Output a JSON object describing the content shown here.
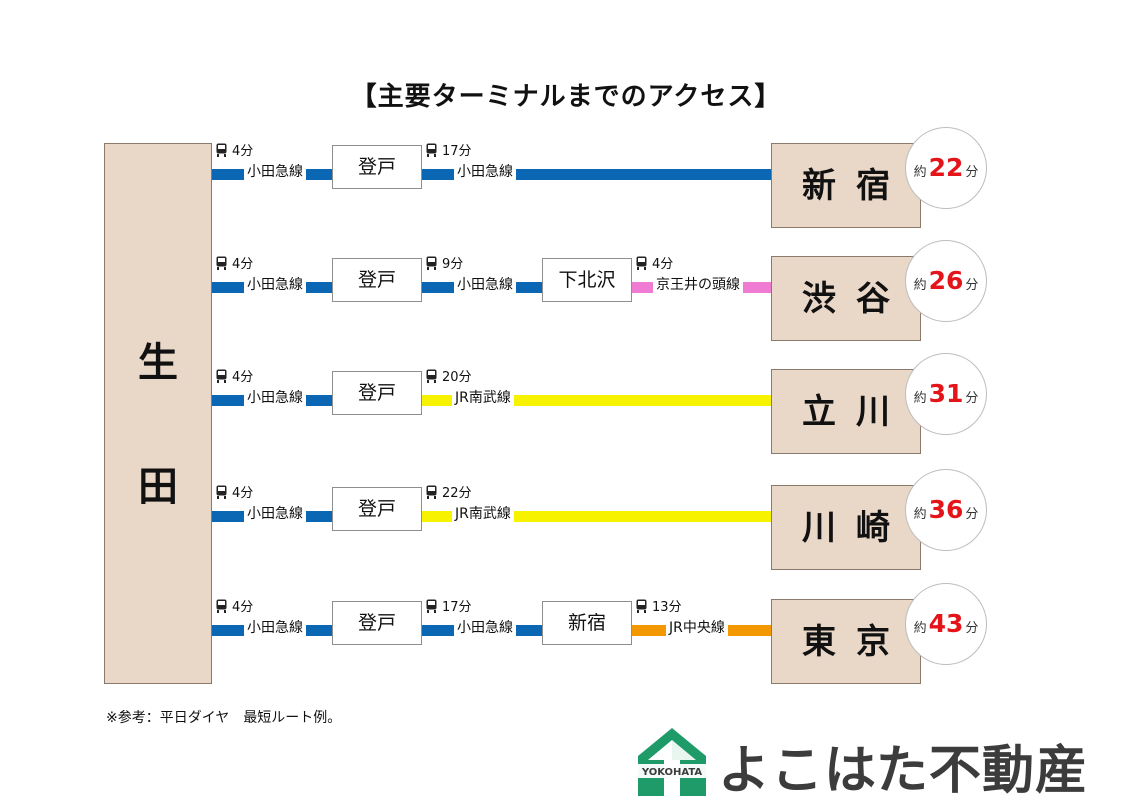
{
  "title": "【主要ターミナルまでのアクセス】",
  "origin": {
    "char1": "生",
    "char2": "田"
  },
  "colors": {
    "odakyu": "#0b67b3",
    "jr_nambu": "#f6f200",
    "keio_inokashira": "#f07bd3",
    "jr_chuo": "#f39800",
    "origin_fill": "#e9d7c8",
    "minutes_red": "#e3151a"
  },
  "routes": [
    {
      "seg1": {
        "time": "4分",
        "line": "小田急線"
      },
      "transfer1": "登戸",
      "seg2": {
        "time": "17分",
        "line": "小田急線"
      },
      "destination": "新宿",
      "badge": {
        "prefix": "約",
        "minutes": "22",
        "suffix": "分"
      }
    },
    {
      "seg1": {
        "time": "4分",
        "line": "小田急線"
      },
      "transfer1": "登戸",
      "seg2": {
        "time": "9分",
        "line": "小田急線"
      },
      "transfer2": "下北沢",
      "seg3": {
        "time": "4分",
        "line": "京王井の頭線"
      },
      "destination": "渋谷",
      "badge": {
        "prefix": "約",
        "minutes": "26",
        "suffix": "分"
      }
    },
    {
      "seg1": {
        "time": "4分",
        "line": "小田急線"
      },
      "transfer1": "登戸",
      "seg2": {
        "time": "20分",
        "line": "JR南武線"
      },
      "destination": "立川",
      "badge": {
        "prefix": "約",
        "minutes": "31",
        "suffix": "分"
      }
    },
    {
      "seg1": {
        "time": "4分",
        "line": "小田急線"
      },
      "transfer1": "登戸",
      "seg2": {
        "time": "22分",
        "line": "JR南武線"
      },
      "destination": "川崎",
      "badge": {
        "prefix": "約",
        "minutes": "36",
        "suffix": "分"
      }
    },
    {
      "seg1": {
        "time": "4分",
        "line": "小田急線"
      },
      "transfer1": "登戸",
      "seg2": {
        "time": "17分",
        "line": "小田急線"
      },
      "transfer2": "新宿",
      "seg3": {
        "time": "13分",
        "line": "JR中央線"
      },
      "destination": "東京",
      "badge": {
        "prefix": "約",
        "minutes": "43",
        "suffix": "分"
      }
    }
  ],
  "note": "※参考：平日ダイヤ　最短ルート例。",
  "brand": {
    "name": "よこはた不動産",
    "logo_text": "YOKOHATA"
  },
  "icons": {
    "train": "train-icon",
    "logo": "yokohata-house-logo-icon"
  }
}
